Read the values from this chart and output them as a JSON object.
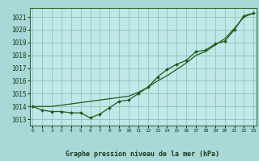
{
  "title": "Graphe pression niveau de la mer (hPa)",
  "background_color": "#a8d8d8",
  "plot_background": "#c0e8e8",
  "grid_color": "#90c0b8",
  "line_color": "#1a5c1a",
  "marker_color": "#1a5c1a",
  "hours": [
    0,
    1,
    2,
    3,
    4,
    5,
    6,
    7,
    8,
    9,
    10,
    11,
    12,
    13,
    14,
    15,
    16,
    17,
    18,
    19,
    20,
    21,
    22,
    23
  ],
  "series_markers": [
    1014.0,
    1013.7,
    1013.6,
    1013.6,
    1013.5,
    1013.5,
    1013.1,
    1013.4,
    1013.9,
    1014.4,
    1014.5,
    1015.0,
    1015.5,
    1016.3,
    1016.9,
    1017.3,
    1017.6,
    1018.3,
    1018.4,
    1018.9,
    1019.1,
    1020.0,
    1021.1,
    1021.3
  ],
  "series_smooth": [
    1014.0,
    1014.0,
    1014.0,
    1014.1,
    1014.2,
    1014.3,
    1014.4,
    1014.5,
    1014.6,
    1014.7,
    1014.8,
    1015.1,
    1015.5,
    1016.0,
    1016.4,
    1016.9,
    1017.4,
    1018.0,
    1018.3,
    1018.8,
    1019.3,
    1020.1,
    1021.0,
    1021.3
  ],
  "ylim": [
    1012.5,
    1021.7
  ],
  "yticks": [
    1013,
    1014,
    1015,
    1016,
    1017,
    1018,
    1019,
    1020,
    1021
  ],
  "xlim": [
    -0.3,
    23.3
  ],
  "xticks": [
    0,
    1,
    2,
    3,
    4,
    5,
    6,
    7,
    8,
    9,
    10,
    11,
    12,
    13,
    14,
    15,
    16,
    17,
    18,
    19,
    20,
    21,
    22,
    23
  ],
  "xlabel_fontsize": 6.0,
  "ytick_fontsize": 5.5,
  "xtick_fontsize": 4.5
}
